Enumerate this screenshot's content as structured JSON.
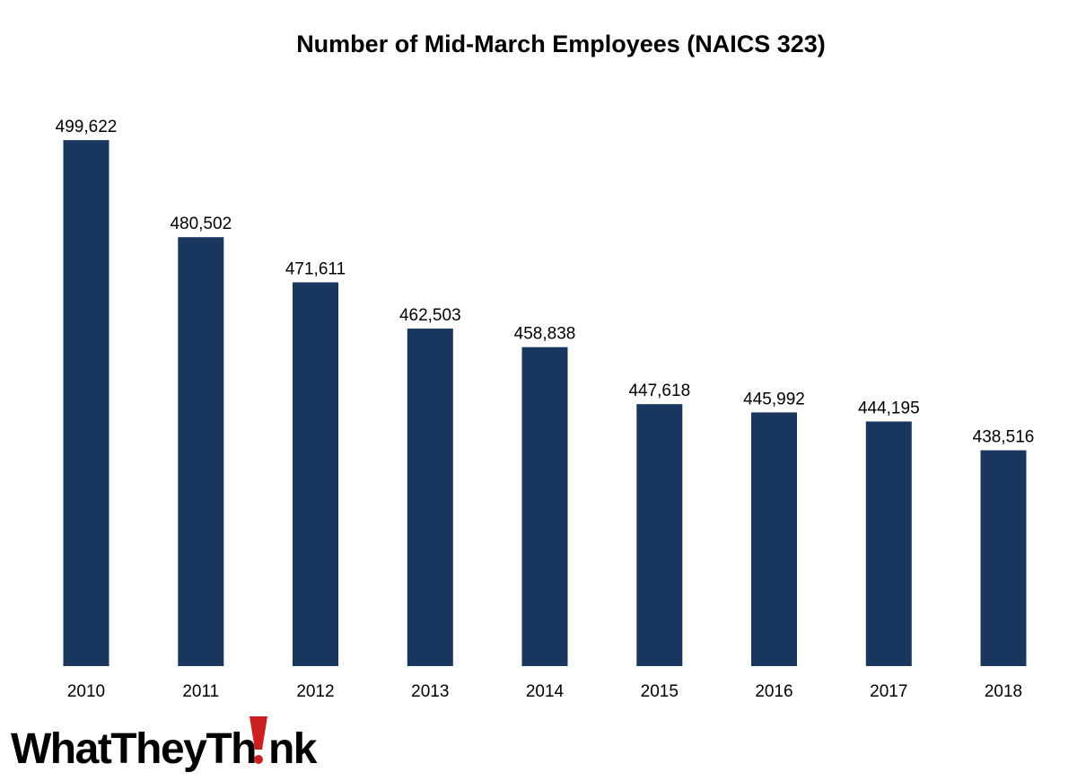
{
  "chart_data": {
    "type": "bar",
    "title": "Number of Mid-March  Employees (NAICS 323)",
    "categories": [
      "2010",
      "2011",
      "2012",
      "2013",
      "2014",
      "2015",
      "2016",
      "2017",
      "2018"
    ],
    "values": [
      499622,
      480502,
      471611,
      462503,
      458838,
      447618,
      445992,
      444195,
      438516
    ],
    "data_labels": [
      "499,622",
      "480,502",
      "471,611",
      "462,503",
      "458,838",
      "447,618",
      "445,992",
      "444,195",
      "438,516"
    ],
    "xlabel": "",
    "ylabel": "",
    "ylim": [
      396000,
      500000
    ],
    "grid": false,
    "legend": "none",
    "bar_color": "#19365e"
  },
  "logo": {
    "text_before": "WhatTheyTh",
    "text_after": "nk",
    "accent_color": "#cc1f1f"
  }
}
